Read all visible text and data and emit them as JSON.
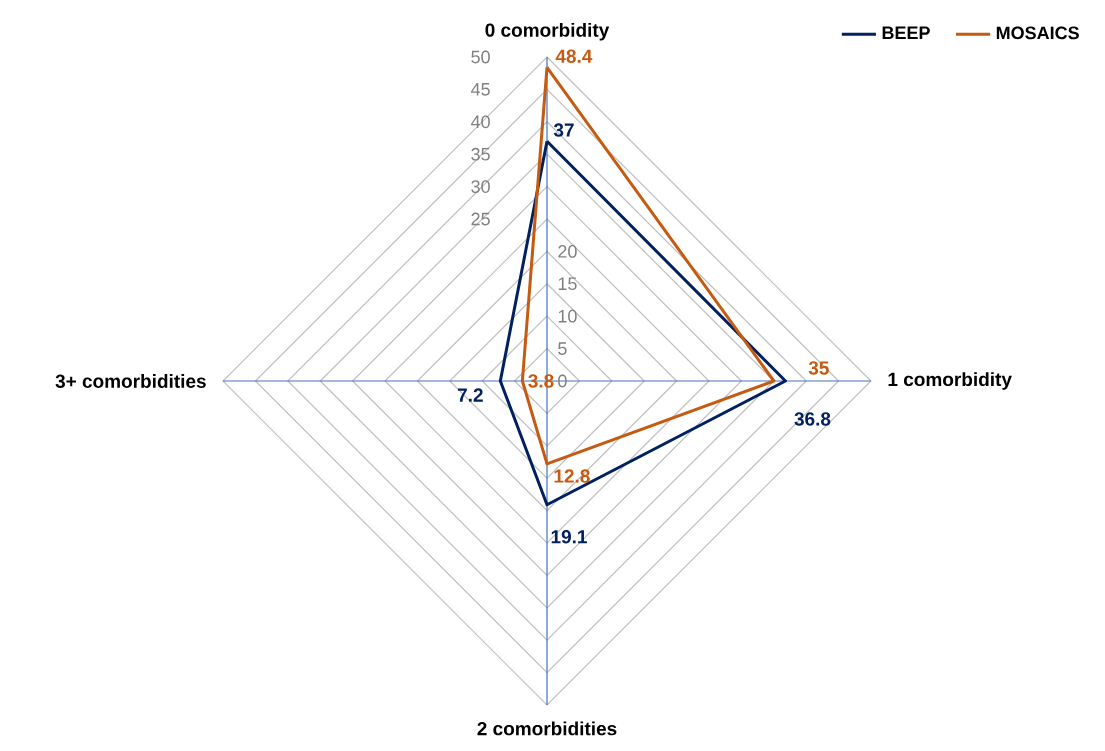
{
  "chart_data": {
    "type": "radar",
    "categories": [
      "0 comorbidity",
      "1 comorbidity",
      "2 comorbidities",
      "3+ comorbidities"
    ],
    "series": [
      {
        "name": "BEEP",
        "color": "#002060",
        "values": [
          37,
          36.8,
          19.1,
          7.2
        ]
      },
      {
        "name": "MOSAICS",
        "color": "#c55a11",
        "values": [
          48.4,
          35,
          12.8,
          3.8
        ]
      }
    ],
    "ylim": [
      0,
      50
    ],
    "yticks": [
      0,
      5,
      10,
      15,
      20,
      25,
      30,
      35,
      40,
      45,
      50
    ],
    "grid": true,
    "legend": "top right",
    "data_labels": true
  }
}
